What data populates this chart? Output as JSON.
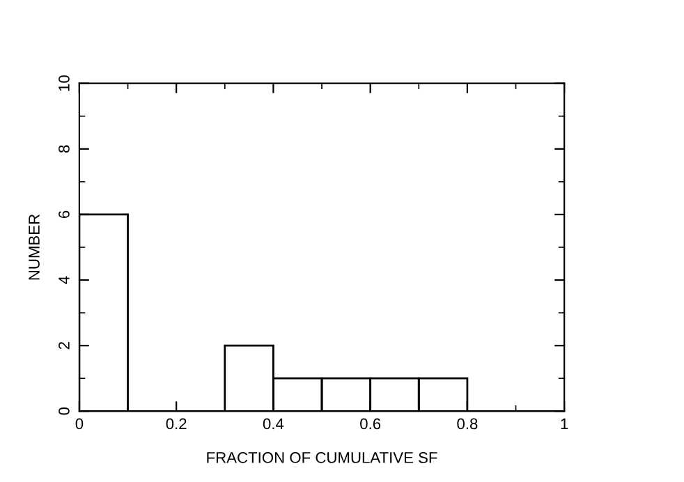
{
  "chart_data": {
    "type": "histogram",
    "xlabel": "FRACTION OF CUMULATIVE SF",
    "ylabel": "NUMBER",
    "bins": [
      0,
      0.1,
      0.2,
      0.3,
      0.4,
      0.5,
      0.6,
      0.7,
      0.8,
      0.9,
      1.0
    ],
    "values": [
      6,
      0,
      0,
      2,
      1,
      1,
      1,
      1,
      0,
      0
    ],
    "color": "#000000",
    "xlim": [
      0,
      1
    ],
    "ylim": [
      0,
      10
    ],
    "xticks": [
      0,
      0.2,
      0.4,
      0.6,
      0.8,
      1
    ],
    "yticks": [
      0,
      2,
      4,
      6,
      8,
      10
    ],
    "grid": false
  }
}
